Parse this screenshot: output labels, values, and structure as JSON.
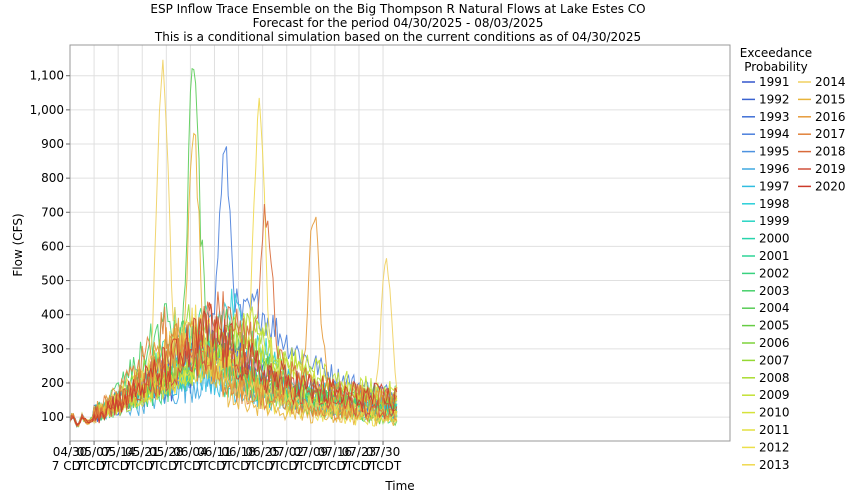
{
  "chart_data": {
    "type": "line",
    "title": [
      "ESP Inflow Trace Ensemble on the Big Thompson R Natural Flows at Lake Estes CO",
      "Forecast for the period 04/30/2025 - 08/03/2025",
      "This is a conditional simulation based on the current conditions as of 04/30/2025"
    ],
    "xlabel": "Time",
    "ylabel": "Flow (CFS)",
    "ylim": [
      30,
      1190
    ],
    "grid": true,
    "x_tick_labels": [
      {
        "date": "04/30",
        "tz": "7 CDT"
      },
      {
        "date": "05/07",
        "tz": "7 CDT"
      },
      {
        "date": "05/14",
        "tz": "7 CDT"
      },
      {
        "date": "05/21",
        "tz": "7 CDT"
      },
      {
        "date": "05/28",
        "tz": "7 CDT"
      },
      {
        "date": "06/04",
        "tz": "7 CDT"
      },
      {
        "date": "06/11",
        "tz": "7 CDT"
      },
      {
        "date": "06/18",
        "tz": "7 CDT"
      },
      {
        "date": "06/25",
        "tz": "7 CDT"
      },
      {
        "date": "07/02",
        "tz": "7 CDT"
      },
      {
        "date": "07/09",
        "tz": "7 CDT"
      },
      {
        "date": "07/16",
        "tz": "7 CDT"
      },
      {
        "date": "07/23",
        "tz": "7 CDT"
      },
      {
        "date": "07/30",
        "tz": "7 CDT"
      }
    ],
    "y_ticks": [
      100,
      200,
      300,
      400,
      500,
      600,
      700,
      800,
      900,
      1000,
      1100
    ],
    "y_tick_labels": [
      "100",
      "200",
      "300",
      "400",
      "500",
      "600",
      "700",
      "800",
      "900",
      "1,000",
      "1,100"
    ],
    "legend": {
      "title": [
        "Exceedance",
        "Probability"
      ],
      "position": "right",
      "entries": [
        {
          "name": "1991",
          "color": "#3355cc"
        },
        {
          "name": "1992",
          "color": "#3a63d0"
        },
        {
          "name": "1993",
          "color": "#3f6fd6"
        },
        {
          "name": "1994",
          "color": "#4a7fdc"
        },
        {
          "name": "1995",
          "color": "#4d92e0"
        },
        {
          "name": "1996",
          "color": "#3fa8e0"
        },
        {
          "name": "1997",
          "color": "#30bde0"
        },
        {
          "name": "1998",
          "color": "#2acfd8"
        },
        {
          "name": "1999",
          "color": "#28d4c4"
        },
        {
          "name": "2000",
          "color": "#28d4ac"
        },
        {
          "name": "2001",
          "color": "#2ed497"
        },
        {
          "name": "2002",
          "color": "#38d27f"
        },
        {
          "name": "2003",
          "color": "#46d06a"
        },
        {
          "name": "2004",
          "color": "#58cc55"
        },
        {
          "name": "2005",
          "color": "#66cc44"
        },
        {
          "name": "2006",
          "color": "#7ed23a"
        },
        {
          "name": "2007",
          "color": "#94d832"
        },
        {
          "name": "2008",
          "color": "#aadc30"
        },
        {
          "name": "2009",
          "color": "#c2e034"
        },
        {
          "name": "2010",
          "color": "#d6e23a"
        },
        {
          "name": "2011",
          "color": "#e2e040"
        },
        {
          "name": "2012",
          "color": "#ecdf4a"
        },
        {
          "name": "2013",
          "color": "#f0d84e"
        },
        {
          "name": "2014",
          "color": "#f0d060"
        },
        {
          "name": "2015",
          "color": "#e8b43a"
        },
        {
          "name": "2016",
          "color": "#e69a3a"
        },
        {
          "name": "2017",
          "color": "#e0823a"
        },
        {
          "name": "2018",
          "color": "#d86a3a"
        },
        {
          "name": "2019",
          "color": "#d0503a"
        },
        {
          "name": "2020",
          "color": "#cc3a2a"
        }
      ]
    },
    "series_summary": {
      "start_flow": 90,
      "ensemble_peak_dates": [
        "06/02",
        "06/18"
      ],
      "typical_peak_range": [
        250,
        450
      ],
      "end_flow_range": [
        80,
        160
      ],
      "notable_peaks": [
        {
          "name": "2014",
          "date": "05/26",
          "value": 1135
        },
        {
          "name": "2004",
          "date": "06/04",
          "value": 1135
        },
        {
          "name": "2013",
          "date": "06/23",
          "value": 1015
        },
        {
          "name": "2015",
          "date": "06/04",
          "value": 910
        },
        {
          "name": "1994",
          "date": "06/13",
          "value": 870
        },
        {
          "name": "2016",
          "date": "07/09",
          "value": 715
        },
        {
          "name": "2018",
          "date": "06/25",
          "value": 700
        },
        {
          "name": "2014",
          "date": "07/30",
          "value": 555
        }
      ]
    }
  }
}
